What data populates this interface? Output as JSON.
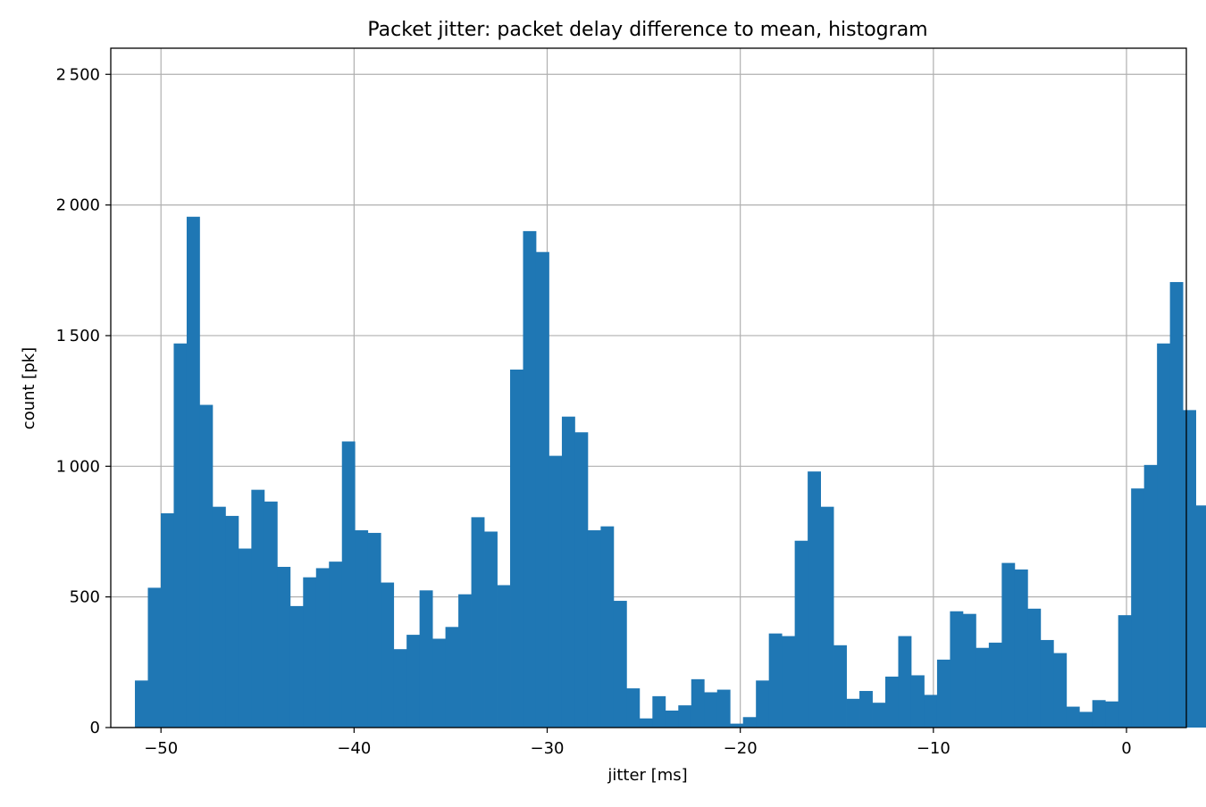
{
  "chart_data": {
    "type": "bar",
    "title": "Packet jitter: packet delay difference to mean, histogram",
    "xlabel": "jitter [ms]",
    "ylabel": "count [pk]",
    "xlim": [
      -52.6,
      3.1
    ],
    "ylim": [
      0,
      2600
    ],
    "x_ticks": [
      -50,
      -40,
      -30,
      -20,
      -10,
      0
    ],
    "x_tick_labels": [
      "−50",
      "−40",
      "−30",
      "−20",
      "−10",
      "0"
    ],
    "y_ticks": [
      0,
      500,
      1000,
      1500,
      2000,
      2500
    ],
    "y_tick_labels": [
      "0",
      "500",
      "1 000",
      "1 500",
      "2 000",
      "2 500"
    ],
    "grid": true,
    "color": "#1f77b4",
    "bin_width": 0.67,
    "bin_start": -51.35,
    "values": [
      180,
      535,
      820,
      1470,
      1955,
      1235,
      845,
      810,
      685,
      910,
      865,
      615,
      465,
      575,
      610,
      635,
      1095,
      755,
      745,
      555,
      300,
      355,
      525,
      340,
      385,
      510,
      805,
      750,
      545,
      1370,
      1900,
      1820,
      1040,
      1190,
      1130,
      755,
      770,
      485,
      150,
      35,
      120,
      65,
      85,
      185,
      135,
      145,
      15,
      40,
      180,
      360,
      350,
      715,
      980,
      845,
      315,
      110,
      140,
      95,
      195,
      350,
      200,
      125,
      260,
      445,
      435,
      305,
      325,
      630,
      605,
      455,
      335,
      285,
      80,
      60,
      105,
      100,
      430,
      915,
      1005,
      1470,
      1705,
      1215,
      850,
      5
    ]
  }
}
